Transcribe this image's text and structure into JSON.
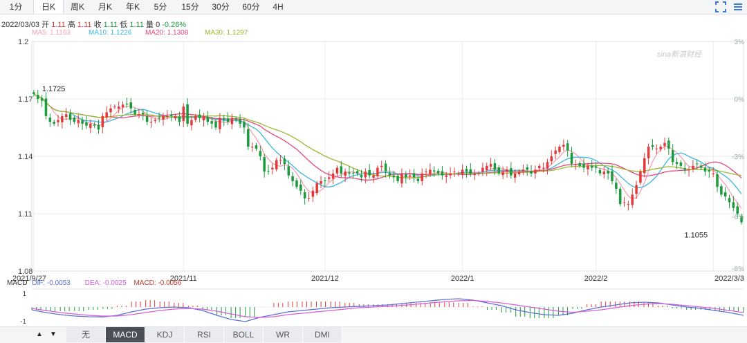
{
  "tabs": [
    {
      "label": "1分",
      "active": false
    },
    {
      "label": "日K",
      "active": true
    },
    {
      "label": "周K",
      "active": false
    },
    {
      "label": "月K",
      "active": false
    },
    {
      "label": "年K",
      "active": false
    },
    {
      "label": "5分",
      "active": false
    },
    {
      "label": "15分",
      "active": false
    },
    {
      "label": "30分",
      "active": false
    },
    {
      "label": "60分",
      "active": false
    },
    {
      "label": "4H",
      "active": false
    }
  ],
  "quote": {
    "date": "2022/03/03",
    "open_label": "开",
    "open": "1.11",
    "high_label": "高",
    "high": "1.11",
    "close_label": "收",
    "close": "1.11",
    "low_label": "低",
    "low": "1.11",
    "vol_label": "量",
    "vol": "0",
    "change": "-0.26%"
  },
  "ma_legend": [
    {
      "text": "MA5: 1.1163",
      "color": "#f7a0b2"
    },
    {
      "text": "MA10: 1.1226",
      "color": "#3cb6e3"
    },
    {
      "text": "MA20: 1.1308",
      "color": "#e6457a"
    },
    {
      "text": "MA30: 1.1297",
      "color": "#9cb832"
    }
  ],
  "watermark": "sina新浪财经",
  "macd_legend": {
    "title": "MACD",
    "dif": "DIF: -0.0053",
    "dea": "DEA: -0.0025",
    "macd": "MACD: -0.0056"
  },
  "indicators": [
    {
      "label": "无",
      "active": false
    },
    {
      "label": "MACD",
      "active": true
    },
    {
      "label": "KDJ",
      "active": false
    },
    {
      "label": "RSI",
      "active": false
    },
    {
      "label": "BOLL",
      "active": false
    },
    {
      "label": "WR",
      "active": false
    },
    {
      "label": "DMI",
      "active": false
    }
  ],
  "colors": {
    "up": "#e03b3b",
    "down": "#1a9b3c",
    "dif": "#5a6fd6",
    "dea": "#d45ed8"
  },
  "chart_data": {
    "type": "candlestick",
    "x_labels": [
      "2021/9/27",
      "2021/11",
      "2021/12",
      "2022/1",
      "2022/2",
      "2022/3/3"
    ],
    "x_label_index": [
      0,
      37,
      72,
      106,
      139,
      168
    ],
    "y_left_ticks": [
      "1.2",
      "1.17",
      "1.14",
      "1.11",
      "1.08"
    ],
    "y_left_values": [
      1.2,
      1.17,
      1.14,
      1.11,
      1.08
    ],
    "y_right_ticks": [
      "3%",
      "0%",
      "-3%",
      "-6%",
      "-8%"
    ],
    "annotations": [
      {
        "text": "1.1725",
        "index": 1,
        "value": 1.1725
      },
      {
        "text": "1.1055",
        "index": 168,
        "value": 1.1055
      }
    ],
    "ylim": [
      1.08,
      1.2
    ],
    "closes": [
      1.1725,
      1.17,
      1.169,
      1.161,
      1.158,
      1.157,
      1.159,
      1.161,
      1.162,
      1.159,
      1.158,
      1.159,
      1.157,
      1.156,
      1.157,
      1.156,
      1.154,
      1.161,
      1.163,
      1.165,
      1.166,
      1.166,
      1.167,
      1.167,
      1.165,
      1.162,
      1.162,
      1.162,
      1.158,
      1.158,
      1.159,
      1.16,
      1.161,
      1.161,
      1.161,
      1.161,
      1.158,
      1.166,
      1.157,
      1.159,
      1.161,
      1.16,
      1.161,
      1.158,
      1.157,
      1.155,
      1.16,
      1.159,
      1.158,
      1.16,
      1.159,
      1.157,
      1.155,
      1.145,
      1.145,
      1.144,
      1.14,
      1.132,
      1.132,
      1.134,
      1.138,
      1.138,
      1.136,
      1.13,
      1.127,
      1.124,
      1.122,
      1.118,
      1.118,
      1.122,
      1.126,
      1.127,
      1.127,
      1.129,
      1.131,
      1.134,
      1.131,
      1.132,
      1.131,
      1.131,
      1.131,
      1.129,
      1.132,
      1.13,
      1.13,
      1.134,
      1.135,
      1.132,
      1.13,
      1.129,
      1.127,
      1.131,
      1.129,
      1.13,
      1.129,
      1.127,
      1.131,
      1.132,
      1.133,
      1.132,
      1.131,
      1.13,
      1.13,
      1.131,
      1.132,
      1.131,
      1.133,
      1.132,
      1.131,
      1.131,
      1.131,
      1.134,
      1.135,
      1.136,
      1.133,
      1.131,
      1.132,
      1.133,
      1.13,
      1.131,
      1.132,
      1.133,
      1.133,
      1.131,
      1.133,
      1.135,
      1.134,
      1.137,
      1.14,
      1.143,
      1.145,
      1.146,
      1.143,
      1.136,
      1.136,
      1.135,
      1.134,
      1.135,
      1.134,
      1.134,
      1.131,
      1.132,
      1.131,
      1.127,
      1.123,
      1.115,
      1.116,
      1.115,
      1.12,
      1.125,
      1.132,
      1.139,
      1.145,
      1.145,
      1.144,
      1.145,
      1.147,
      1.144,
      1.137,
      1.136,
      1.135,
      1.133,
      1.133,
      1.135,
      1.136,
      1.134,
      1.132,
      1.132,
      1.131,
      1.124,
      1.12,
      1.119,
      1.116,
      1.113,
      1.11,
      1.1055
    ],
    "macd_ylim": [
      -1,
      1
    ],
    "macd_y_ticks": [
      "1",
      "-1"
    ],
    "dif": [
      -0.2,
      -0.4,
      -0.55,
      -0.65,
      -0.7,
      -0.72,
      -0.6,
      -0.35,
      -0.15,
      -0.05,
      0.0,
      -0.05,
      -0.25,
      -0.6,
      -0.9,
      -1.05,
      -0.75,
      -0.55,
      -0.35,
      -0.25,
      -0.15,
      -0.05,
      0.0,
      0.05,
      0.1,
      0.15,
      0.25,
      0.35,
      0.45,
      0.55,
      0.6,
      0.5,
      0.3,
      0.1,
      -0.2,
      -0.4,
      -0.55,
      -0.6,
      -0.45,
      -0.2,
      0.0,
      0.15,
      0.3,
      0.35,
      0.3,
      0.15,
      0.0,
      -0.1,
      -0.25,
      -0.4,
      -0.6
    ],
    "dea": [
      -0.1,
      -0.25,
      -0.4,
      -0.5,
      -0.6,
      -0.65,
      -0.65,
      -0.55,
      -0.4,
      -0.25,
      -0.15,
      -0.1,
      -0.15,
      -0.3,
      -0.5,
      -0.7,
      -0.75,
      -0.7,
      -0.55,
      -0.45,
      -0.35,
      -0.25,
      -0.15,
      -0.05,
      0.0,
      0.05,
      0.12,
      0.2,
      0.3,
      0.38,
      0.45,
      0.48,
      0.4,
      0.3,
      0.15,
      0.0,
      -0.15,
      -0.3,
      -0.38,
      -0.3,
      -0.2,
      -0.05,
      0.1,
      0.2,
      0.25,
      0.2,
      0.1,
      0.0,
      -0.1,
      -0.25,
      -0.4
    ]
  }
}
